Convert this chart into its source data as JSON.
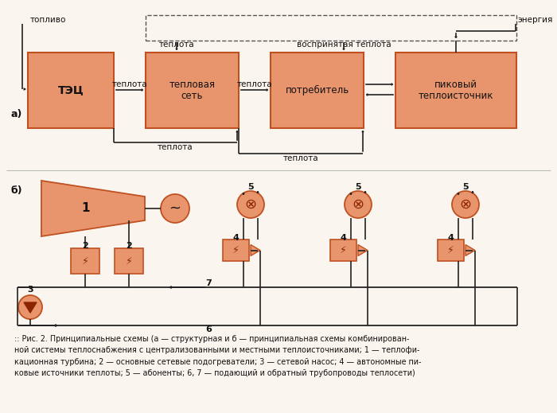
{
  "bg_color": "#faf6ef",
  "box_color": "#e8956d",
  "box_edge": "#c05020",
  "line_color": "#222222",
  "text_color": "#111111",
  "fig_width": 7.0,
  "fig_height": 5.19,
  "caption_line1": ":: Рис. 2. Принципиальные схемы (а — структурная и б — принципиальная схемы комбинирован-",
  "caption_line2": "ной системы теплоснабжения с централизованными и местными теплоисточниками; 1 — теплофи-",
  "caption_line3": "кационная турбина; 2 — основные сетевые подогреватели; 3 — сетевой насос; 4 — автономные пи-",
  "caption_line4": "ковые источники теплоты; 5 — абоненты; 6, 7 — подающий и обратный трубопроводы теплосети)"
}
